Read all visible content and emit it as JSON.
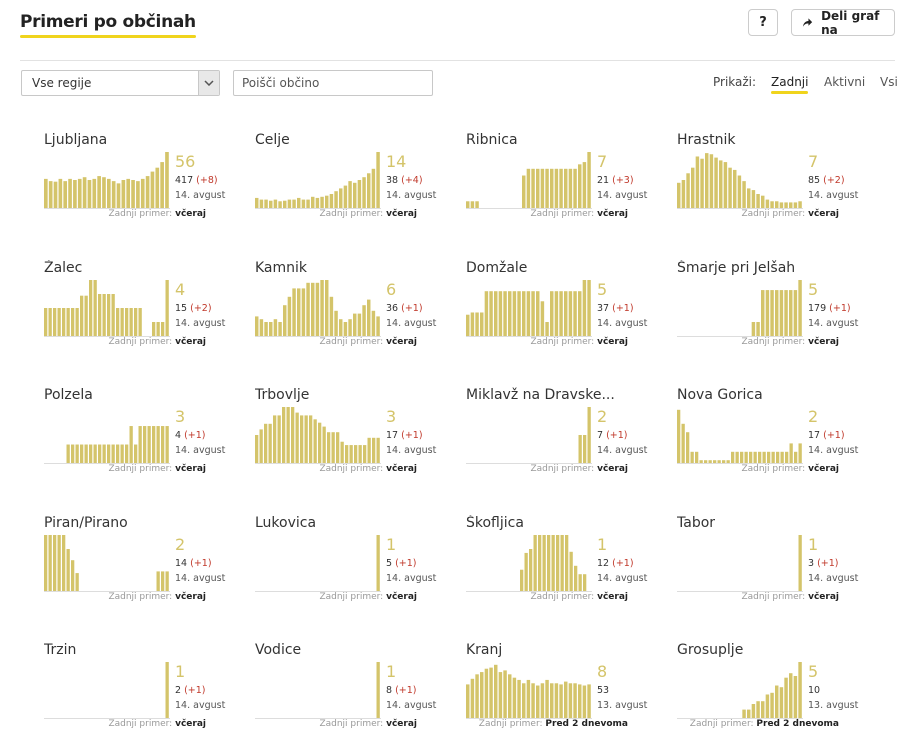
{
  "header": {
    "title": "Primeri po občinah",
    "help_label": "?",
    "share_label": "Deli graf na"
  },
  "filters": {
    "region_value": "Vse regije",
    "search_placeholder": "Poišči občino",
    "show_label": "Prikaži:",
    "tabs": [
      {
        "label": "Zadnji",
        "active": true
      },
      {
        "label": "Aktivni",
        "active": false
      },
      {
        "label": "Vsi",
        "active": false
      }
    ]
  },
  "colors": {
    "bar": "#d4c46a",
    "accent": "#f0d41c",
    "delta": "#c0392b"
  },
  "last_label": "Zadnji primer:",
  "municipalities": [
    {
      "name": "Ljubljana",
      "latest": "56",
      "total": "417",
      "delta": "(+8)",
      "date": "14. avgust",
      "last": "včeraj",
      "bars": [
        0.52,
        0.48,
        0.47,
        0.52,
        0.48,
        0.52,
        0.5,
        0.52,
        0.55,
        0.5,
        0.52,
        0.57,
        0.55,
        0.52,
        0.48,
        0.44,
        0.5,
        0.52,
        0.5,
        0.48,
        0.52,
        0.57,
        0.65,
        0.72,
        0.82,
        1.0
      ]
    },
    {
      "name": "Celje",
      "latest": "14",
      "total": "38",
      "delta": "(+4)",
      "date": "14. avgust",
      "last": "včeraj",
      "bars": [
        0.18,
        0.15,
        0.15,
        0.13,
        0.15,
        0.12,
        0.13,
        0.15,
        0.15,
        0.18,
        0.15,
        0.15,
        0.2,
        0.18,
        0.2,
        0.22,
        0.25,
        0.3,
        0.35,
        0.4,
        0.48,
        0.45,
        0.5,
        0.55,
        0.62,
        0.7,
        1.0
      ]
    },
    {
      "name": "Ribnica",
      "latest": "7",
      "total": "21",
      "delta": "(+3)",
      "date": "14. avgust",
      "last": "včeraj",
      "bars": [
        0.12,
        0.12,
        0.12,
        0,
        0,
        0,
        0,
        0,
        0,
        0,
        0,
        0,
        0.58,
        0.7,
        0.7,
        0.7,
        0.7,
        0.7,
        0.7,
        0.7,
        0.7,
        0.7,
        0.7,
        0.7,
        0.78,
        0.82,
        1.0
      ]
    },
    {
      "name": "Hrastnik",
      "latest": "7",
      "total": "85",
      "delta": "(+2)",
      "date": "14. avgust",
      "last": "včeraj",
      "bars": [
        0.45,
        0.5,
        0.62,
        0.72,
        0.92,
        0.88,
        0.98,
        0.96,
        0.9,
        0.85,
        0.82,
        0.72,
        0.68,
        0.58,
        0.48,
        0.35,
        0.32,
        0.25,
        0.22,
        0.15,
        0.12,
        0.12,
        0.1,
        0.1,
        0.1,
        0.1,
        0.12
      ]
    },
    {
      "name": "Žalec",
      "latest": "4",
      "total": "15",
      "delta": "(+2)",
      "date": "14. avgust",
      "last": "včeraj",
      "bars": [
        0.5,
        0.5,
        0.5,
        0.5,
        0.5,
        0.5,
        0.5,
        0.5,
        0.72,
        0.72,
        1.0,
        1.0,
        0.75,
        0.75,
        0.75,
        0.75,
        0.5,
        0.5,
        0.5,
        0.5,
        0.5,
        0.5,
        0,
        0,
        0.25,
        0.25,
        0.25,
        1.0
      ]
    },
    {
      "name": "Kamnik",
      "latest": "6",
      "total": "36",
      "delta": "(+1)",
      "date": "14. avgust",
      "last": "včeraj",
      "bars": [
        0.35,
        0.3,
        0.25,
        0.25,
        0.3,
        0.25,
        0.55,
        0.7,
        0.85,
        0.85,
        0.85,
        0.95,
        0.95,
        0.95,
        1.0,
        1.0,
        0.7,
        0.45,
        0.3,
        0.25,
        0.3,
        0.4,
        0.4,
        0.55,
        0.65,
        0.45,
        0.35
      ]
    },
    {
      "name": "Domžale",
      "latest": "5",
      "total": "37",
      "delta": "(+1)",
      "date": "14. avgust",
      "last": "včeraj",
      "bars": [
        0.38,
        0.42,
        0.42,
        0.42,
        0.8,
        0.8,
        0.8,
        0.8,
        0.8,
        0.8,
        0.8,
        0.8,
        0.8,
        0.8,
        0.8,
        0.8,
        0.62,
        0.25,
        0.8,
        0.8,
        0.8,
        0.8,
        0.8,
        0.8,
        0.8,
        1.0,
        1.0
      ]
    },
    {
      "name": "Šmarje pri Jelšah",
      "latest": "5",
      "total": "179",
      "delta": "(+1)",
      "date": "14. avgust",
      "last": "včeraj",
      "bars": [
        0,
        0,
        0,
        0,
        0,
        0,
        0,
        0,
        0,
        0,
        0,
        0,
        0,
        0,
        0,
        0,
        0.25,
        0.25,
        0.82,
        0.82,
        0.82,
        0.82,
        0.82,
        0.82,
        0.82,
        0.82,
        1.0
      ]
    },
    {
      "name": "Polzela",
      "latest": "3",
      "total": "4",
      "delta": "(+1)",
      "date": "14. avgust",
      "last": "včeraj",
      "bars": [
        0,
        0,
        0,
        0,
        0,
        0.33,
        0.33,
        0.33,
        0.33,
        0.33,
        0.33,
        0.33,
        0.33,
        0.33,
        0.33,
        0.33,
        0.33,
        0.33,
        0.33,
        0.66,
        0.33,
        0.66,
        0.66,
        0.66,
        0.66,
        0.66,
        0.66,
        0.66
      ]
    },
    {
      "name": "Trbovlje",
      "latest": "3",
      "total": "17",
      "delta": "(+1)",
      "date": "14. avgust",
      "last": "včeraj",
      "bars": [
        0.5,
        0.6,
        0.7,
        0.7,
        0.85,
        0.85,
        1.0,
        1.0,
        1.0,
        0.9,
        0.85,
        0.85,
        0.85,
        0.78,
        0.72,
        0.65,
        0.55,
        0.55,
        0.55,
        0.38,
        0.32,
        0.32,
        0.32,
        0.32,
        0.32,
        0.45,
        0.45,
        0.45
      ]
    },
    {
      "name": "Miklavž na Dravske...",
      "latest": "2",
      "total": "7",
      "delta": "(+1)",
      "date": "14. avgust",
      "last": "včeraj",
      "bars": [
        0,
        0,
        0,
        0,
        0,
        0,
        0,
        0,
        0,
        0,
        0,
        0,
        0,
        0,
        0,
        0,
        0,
        0,
        0,
        0,
        0,
        0,
        0,
        0,
        0,
        0.5,
        0.5,
        1.0
      ]
    },
    {
      "name": "Nova Gorica",
      "latest": "2",
      "total": "17",
      "delta": "(+1)",
      "date": "14. avgust",
      "last": "včeraj",
      "bars": [
        0.95,
        0.7,
        0.55,
        0.2,
        0.2,
        0.05,
        0.05,
        0.05,
        0.05,
        0.05,
        0.05,
        0.05,
        0.2,
        0.2,
        0.2,
        0.2,
        0.2,
        0.2,
        0.2,
        0.2,
        0.2,
        0.2,
        0.2,
        0.2,
        0.2,
        0.35,
        0.2,
        0.35
      ]
    },
    {
      "name": "Piran/Pirano",
      "latest": "2",
      "total": "14",
      "delta": "(+1)",
      "date": "14. avgust",
      "last": "včeraj",
      "bars": [
        1.0,
        1.0,
        1.0,
        1.0,
        1.0,
        0.75,
        0.55,
        0.32,
        0,
        0,
        0,
        0,
        0,
        0,
        0,
        0,
        0,
        0,
        0,
        0,
        0,
        0,
        0,
        0,
        0,
        0.35,
        0.35,
        0.35
      ]
    },
    {
      "name": "Lukovica",
      "latest": "1",
      "total": "5",
      "delta": "(+1)",
      "date": "14. avgust",
      "last": "včeraj",
      "bars": [
        0,
        0,
        0,
        0,
        0,
        0,
        0,
        0,
        0,
        0,
        0,
        0,
        0,
        0,
        0,
        0,
        0,
        0,
        0,
        0,
        0,
        0,
        0,
        0,
        0,
        0,
        0,
        1.0
      ]
    },
    {
      "name": "Škofljica",
      "latest": "1",
      "total": "12",
      "delta": "(+1)",
      "date": "14. avgust",
      "last": "včeraj",
      "bars": [
        0,
        0,
        0,
        0,
        0,
        0,
        0,
        0,
        0,
        0,
        0,
        0,
        0.38,
        0.68,
        0.75,
        1.0,
        1.0,
        1.0,
        1.0,
        1.0,
        1.0,
        1.0,
        1.0,
        0.7,
        0.45,
        0.3,
        0.3,
        0
      ]
    },
    {
      "name": "Tabor",
      "latest": "1",
      "total": "3",
      "delta": "(+1)",
      "date": "14. avgust",
      "last": "včeraj",
      "bars": [
        0,
        0,
        0,
        0,
        0,
        0,
        0,
        0,
        0,
        0,
        0,
        0,
        0,
        0,
        0,
        0,
        0,
        0,
        0,
        0,
        0,
        0,
        0,
        0,
        0,
        0,
        0,
        1.0
      ]
    },
    {
      "name": "Trzin",
      "latest": "1",
      "total": "2",
      "delta": "(+1)",
      "date": "14. avgust",
      "last": "včeraj",
      "bars": [
        0,
        0,
        0,
        0,
        0,
        0,
        0,
        0,
        0,
        0,
        0,
        0,
        0,
        0,
        0,
        0,
        0,
        0,
        0,
        0,
        0,
        0,
        0,
        0,
        0,
        0,
        0,
        1.0
      ]
    },
    {
      "name": "Vodice",
      "latest": "1",
      "total": "8",
      "delta": "(+1)",
      "date": "14. avgust",
      "last": "včeraj",
      "bars": [
        0,
        0,
        0,
        0,
        0,
        0,
        0,
        0,
        0,
        0,
        0,
        0,
        0,
        0,
        0,
        0,
        0,
        0,
        0,
        0,
        0,
        0,
        0,
        0,
        0,
        0,
        0,
        1.0
      ]
    },
    {
      "name": "Kranj",
      "latest": "8",
      "total": "53",
      "delta": "",
      "date": "13. avgust",
      "last": "Pred 2 dnevoma",
      "bars": [
        0.6,
        0.7,
        0.78,
        0.82,
        0.88,
        0.9,
        0.95,
        0.82,
        0.85,
        0.78,
        0.72,
        0.68,
        0.62,
        0.68,
        0.62,
        0.58,
        0.62,
        0.68,
        0.62,
        0.62,
        0.6,
        0.65,
        0.62,
        0.62,
        0.6,
        0.58,
        0.6
      ]
    },
    {
      "name": "Grosuplje",
      "latest": "5",
      "total": "10",
      "delta": "",
      "date": "13. avgust",
      "last": "Pred 2 dnevoma",
      "bars": [
        0,
        0,
        0,
        0,
        0,
        0,
        0,
        0,
        0,
        0,
        0,
        0,
        0,
        0,
        0.15,
        0.15,
        0.25,
        0.3,
        0.3,
        0.42,
        0.45,
        0.58,
        0.55,
        0.72,
        0.8,
        0.75,
        1.0
      ]
    }
  ]
}
